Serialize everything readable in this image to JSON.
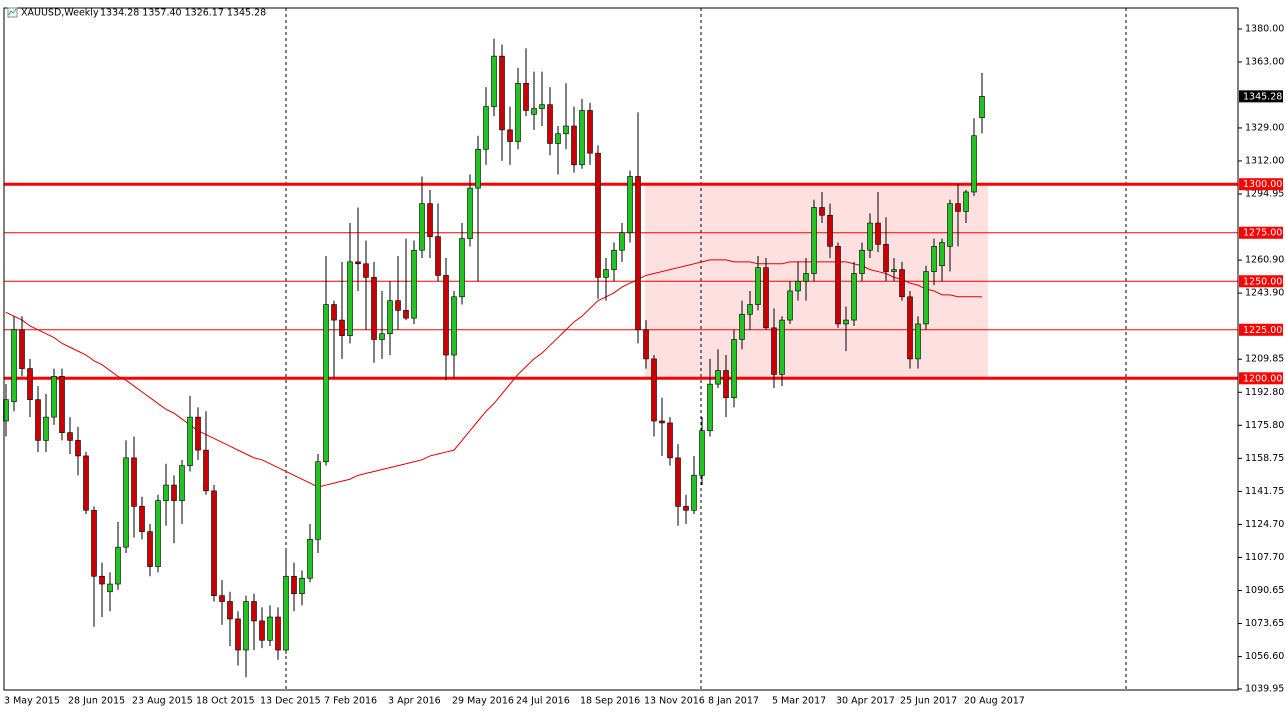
{
  "chart_data": {
    "type": "candlestick",
    "title": "XAUUSD,Weekly",
    "info": "1334.28 1357.40 1326.17 1345.28",
    "categories": [
      "3 May 2015",
      null,
      null,
      null,
      null,
      null,
      null,
      null,
      "28 Jun 2015",
      null,
      null,
      null,
      null,
      null,
      null,
      null,
      "23 Aug 2015",
      null,
      null,
      null,
      null,
      null,
      null,
      null,
      "18 Oct 2015",
      null,
      null,
      null,
      null,
      null,
      null,
      null,
      "13 Dec 2015",
      null,
      null,
      null,
      null,
      null,
      null,
      null,
      "7 Feb 2016",
      null,
      null,
      null,
      null,
      null,
      null,
      null,
      "3 Apr 2016",
      null,
      null,
      null,
      null,
      null,
      null,
      null,
      "29 May 2016",
      null,
      null,
      null,
      null,
      null,
      null,
      null,
      "24 Jul 2016",
      null,
      null,
      null,
      null,
      null,
      null,
      null,
      "18 Sep 2016",
      null,
      null,
      null,
      null,
      null,
      null,
      null,
      "13 Nov 2016",
      null,
      null,
      null,
      null,
      null,
      null,
      null,
      "8 Jan 2017",
      null,
      null,
      null,
      null,
      null,
      null,
      null,
      "5 Mar 2017",
      null,
      null,
      null,
      null,
      null,
      null,
      null,
      "30 Apr 2017",
      null,
      null,
      null,
      null,
      null,
      null,
      null,
      "25 Jun 2017",
      null,
      null,
      null,
      null,
      null,
      null,
      null,
      "20 Aug 2017",
      null,
      null
    ],
    "open": [
      1178,
      1188,
      1225,
      1205,
      1189,
      1168,
      1180,
      1201,
      1172,
      1168,
      1160,
      1132,
      1098,
      1090,
      1094,
      1113,
      1159,
      1134,
      1121,
      1103,
      1137,
      1145,
      1137,
      1155,
      1180,
      1163,
      1142,
      1088,
      1085,
      1076,
      1060,
      1085,
      1075,
      1065,
      1077,
      1060,
      1098,
      1089,
      1097,
      1117,
      1157,
      1238,
      1230,
      1222,
      1260,
      1259,
      1252,
      1220,
      1223,
      1240,
      1235,
      1231,
      1266,
      1290,
      1273,
      1253,
      1212,
      1242,
      1272,
      1298,
      1318,
      1340,
      1366,
      1328,
      1322,
      1352,
      1336,
      1339,
      1341,
      1321,
      1326,
      1330,
      1310,
      1338,
      1316,
      1252,
      1256,
      1266,
      1275,
      1304,
      1225,
      1210,
      1178,
      1177,
      1159,
      1134,
      1132,
      1150,
      1173,
      1197,
      1204,
      1190,
      1220,
      1233,
      1238,
      1257,
      1226,
      1202,
      1230,
      1245,
      1250,
      1254,
      1288,
      1284,
      1268,
      1228,
      1230,
      1254,
      1266,
      1280,
      1269,
      1255,
      1256,
      1242,
      1210,
      1228,
      1255,
      1258,
      1268,
      1290,
      1286,
      1296,
      1334.28
    ],
    "high": [
      1197,
      1232,
      1232,
      1210,
      1196,
      1192,
      1205,
      1205,
      1180,
      1175,
      1162,
      1134,
      1105,
      1100,
      1126,
      1168,
      1170,
      1139,
      1125,
      1140,
      1156,
      1150,
      1158,
      1191,
      1185,
      1183,
      1145,
      1096,
      1090,
      1080,
      1088,
      1089,
      1082,
      1083,
      1082,
      1112,
      1105,
      1101,
      1125,
      1161,
      1263,
      1240,
      1260,
      1280,
      1288,
      1271,
      1260,
      1245,
      1250,
      1263,
      1272,
      1271,
      1304,
      1297,
      1290,
      1262,
      1245,
      1280,
      1305,
      1325,
      1350,
      1375,
      1372,
      1340,
      1360,
      1370,
      1358,
      1358,
      1350,
      1330,
      1352,
      1340,
      1344,
      1342,
      1320,
      1262,
      1270,
      1280,
      1307,
      1337,
      1230,
      1212,
      1190,
      1180,
      1166,
      1140,
      1160,
      1180,
      1210,
      1215,
      1212,
      1225,
      1240,
      1245,
      1263,
      1262,
      1236,
      1232,
      1250,
      1260,
      1262,
      1292,
      1296,
      1290,
      1270,
      1237,
      1260,
      1270,
      1285,
      1296,
      1283,
      1262,
      1260,
      1245,
      1232,
      1258,
      1272,
      1272,
      1292,
      1300,
      1297,
      1334,
      1357.4
    ],
    "low": [
      1170,
      1183,
      1201,
      1180,
      1162,
      1162,
      1176,
      1168,
      1161,
      1150,
      1130,
      1072,
      1077,
      1080,
      1091,
      1110,
      1118,
      1117,
      1098,
      1100,
      1124,
      1115,
      1125,
      1152,
      1158,
      1140,
      1085,
      1073,
      1062,
      1052,
      1046,
      1060,
      1061,
      1062,
      1055,
      1058,
      1080,
      1083,
      1095,
      1110,
      1155,
      1200,
      1210,
      1218,
      1245,
      1225,
      1208,
      1210,
      1212,
      1225,
      1230,
      1228,
      1262,
      1262,
      1250,
      1199,
      1200,
      1238,
      1268,
      1250,
      1310,
      1335,
      1312,
      1310,
      1318,
      1335,
      1328,
      1330,
      1315,
      1305,
      1318,
      1306,
      1308,
      1310,
      1241,
      1240,
      1250,
      1260,
      1270,
      1218,
      1205,
      1170,
      1160,
      1155,
      1124,
      1125,
      1130,
      1145,
      1170,
      1195,
      1180,
      1185,
      1215,
      1225,
      1235,
      1225,
      1195,
      1196,
      1228,
      1240,
      1240,
      1250,
      1280,
      1262,
      1226,
      1214,
      1227,
      1250,
      1262,
      1265,
      1250,
      1250,
      1240,
      1205,
      1205,
      1225,
      1248,
      1250,
      1255,
      1268,
      1280,
      1294,
      1326.17
    ],
    "close": [
      1189,
      1225,
      1205,
      1189,
      1168,
      1180,
      1201,
      1172,
      1168,
      1160,
      1132,
      1098,
      1094,
      1094,
      1113,
      1159,
      1134,
      1121,
      1103,
      1137,
      1145,
      1137,
      1155,
      1180,
      1163,
      1142,
      1088,
      1085,
      1076,
      1060,
      1085,
      1075,
      1065,
      1077,
      1060,
      1098,
      1089,
      1097,
      1117,
      1157,
      1238,
      1230,
      1222,
      1260,
      1259,
      1252,
      1220,
      1223,
      1240,
      1235,
      1231,
      1266,
      1290,
      1273,
      1253,
      1212,
      1242,
      1272,
      1298,
      1318,
      1340,
      1366,
      1328,
      1322,
      1352,
      1338,
      1339,
      1341,
      1321,
      1326,
      1330,
      1310,
      1338,
      1316,
      1252,
      1256,
      1266,
      1275,
      1304,
      1225,
      1210,
      1178,
      1177,
      1159,
      1134,
      1132,
      1150,
      1173,
      1197,
      1204,
      1190,
      1220,
      1233,
      1238,
      1257,
      1226,
      1202,
      1230,
      1245,
      1250,
      1254,
      1288,
      1284,
      1268,
      1228,
      1230,
      1254,
      1266,
      1280,
      1269,
      1255,
      1256,
      1242,
      1210,
      1228,
      1255,
      1268,
      1270,
      1290,
      1286,
      1296,
      1325,
      1345.28
    ],
    "up_color": "#22c322",
    "down_color": "#cc0000",
    "overlays": [
      {
        "color": "#e00000",
        "values": [
          1234,
          1232,
          1230,
          1227,
          1225,
          1223,
          1221,
          1218,
          1216,
          1214,
          1212,
          1209,
          1207,
          1204,
          1201,
          1199,
          1196,
          1193,
          1190,
          1187,
          1184,
          1182,
          1179,
          1176,
          1173,
          1171,
          1169,
          1167,
          1165,
          1163,
          1161,
          1159,
          1158,
          1156,
          1154,
          1152,
          1150,
          1148,
          1146,
          1144,
          1145,
          1146,
          1147,
          1148,
          1150,
          1151,
          1152,
          1153,
          1154,
          1155,
          1156,
          1157,
          1158,
          1160,
          1161,
          1162,
          1163,
          1168,
          1173,
          1178,
          1183,
          1187,
          1192,
          1197,
          1202,
          1206,
          1210,
          1213,
          1217,
          1221,
          1225,
          1229,
          1232,
          1236,
          1240,
          1242,
          1244,
          1247,
          1249,
          1251,
          1253,
          1254,
          1255,
          1256,
          1257,
          1258,
          1259,
          1260,
          1261,
          1261,
          1261,
          1260,
          1260,
          1260,
          1259,
          1259,
          1259,
          1259,
          1260,
          1260,
          1260,
          1260,
          1260,
          1260,
          1260,
          1260,
          1259,
          1258,
          1256,
          1255,
          1254,
          1252,
          1251,
          1249,
          1248,
          1246,
          1245,
          1243,
          1243,
          1242,
          1242,
          1242,
          1242
        ]
      }
    ],
    "zone": {
      "ylim": [
        1200,
        1300
      ],
      "color": "#ffe0e0"
    },
    "levels": [
      {
        "value": 1300,
        "label": "1300.00",
        "width": 3
      },
      {
        "value": 1275,
        "label": "1275.00",
        "width": 1
      },
      {
        "value": 1250,
        "label": "1250.00",
        "width": 1
      },
      {
        "value": 1225,
        "label": "1225.00",
        "width": 1
      },
      {
        "value": 1200,
        "label": "1200.00",
        "width": 3
      }
    ],
    "level_color": "#ff0000",
    "last_price": {
      "value": 1345.28,
      "label": "1345.28"
    },
    "ylim": [
      1039.4,
      1390.8
    ],
    "yticks": [
      {
        "value": 1380,
        "label": "1380.00"
      },
      {
        "value": 1363,
        "label": "1363.00"
      },
      {
        "value": 1329,
        "label": "1329.00"
      },
      {
        "value": 1312,
        "label": "1312.00"
      },
      {
        "value": 1294.95,
        "label": "1294.95"
      },
      {
        "value": 1260.9,
        "label": "1260.90"
      },
      {
        "value": 1243.9,
        "label": "1243.90"
      },
      {
        "value": 1209.85,
        "label": "1209.85"
      },
      {
        "value": 1192.8,
        "label": "1192.80"
      },
      {
        "value": 1175.8,
        "label": "1175.80"
      },
      {
        "value": 1158.75,
        "label": "1158.75"
      },
      {
        "value": 1141.75,
        "label": "1141.75"
      },
      {
        "value": 1124.7,
        "label": "1124.70"
      },
      {
        "value": 1107.7,
        "label": "1107.70"
      },
      {
        "value": 1090.65,
        "label": "1090.65"
      },
      {
        "value": 1073.65,
        "label": "1073.65"
      },
      {
        "value": 1056.6,
        "label": "1056.60"
      },
      {
        "value": 1039.95,
        "label": "1039.95"
      }
    ]
  }
}
